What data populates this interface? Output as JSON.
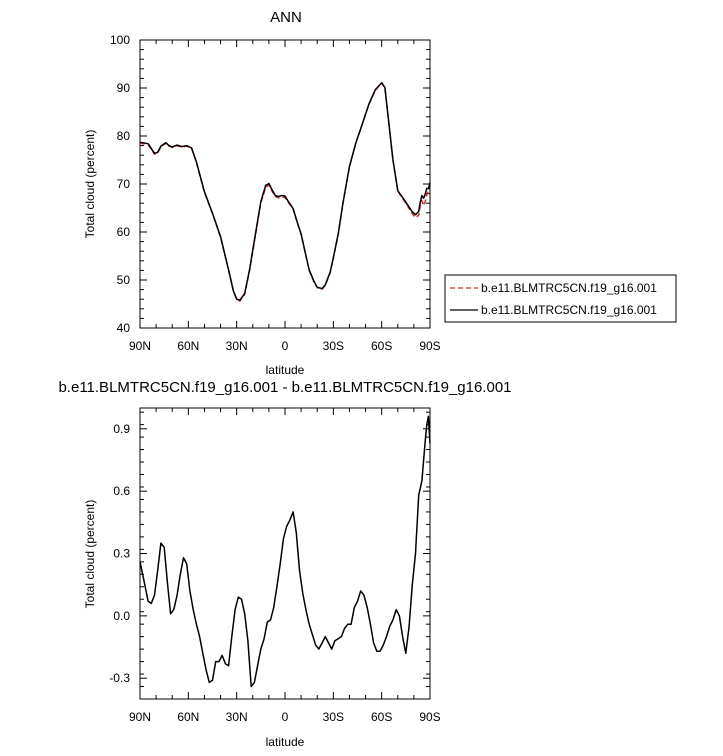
{
  "chart_data": [
    {
      "type": "line",
      "title": "ANN",
      "xlabel": "latitude",
      "ylabel": "Total cloud (percent)",
      "xlim": [
        90,
        -90
      ],
      "ylim": [
        40,
        100
      ],
      "xticks": [
        90,
        60,
        30,
        0,
        -30,
        -60,
        -90
      ],
      "xticklabels": [
        "90N",
        "60N",
        "30N",
        "0",
        "30S",
        "60S",
        "90S"
      ],
      "yticks": [
        40,
        50,
        60,
        70,
        80,
        90,
        100
      ],
      "yticklabels": [
        "40",
        "50",
        "60",
        "70",
        "80",
        "90",
        "100"
      ],
      "legend_position": "right",
      "series": [
        {
          "name": "b.e11.BLMTRC5CN.f19_g16.001",
          "color": "#d62728",
          "style": "dashed",
          "x": [
            90,
            85,
            81,
            79,
            77,
            74,
            72,
            70,
            67,
            64,
            61,
            58,
            55,
            50,
            45,
            40,
            35,
            32,
            30,
            28,
            25,
            22,
            20,
            17,
            15,
            12,
            10,
            8,
            6,
            4,
            2,
            0,
            -2,
            -5,
            -8,
            -10,
            -13,
            -15,
            -18,
            -20,
            -23,
            -25,
            -28,
            -30,
            -33,
            -36,
            -40,
            -44,
            -48,
            -52,
            -56,
            -60,
            -62,
            -64,
            -67,
            -70,
            -73,
            -76,
            -79,
            -81,
            -83,
            -84,
            -85,
            -86,
            -87,
            -88,
            -89,
            -90
          ],
          "y": [
            78.5,
            78.2,
            76.2,
            76.5,
            77.8,
            78.5,
            77.9,
            77.6,
            78.0,
            77.7,
            77.9,
            77.4,
            74.5,
            68.3,
            63.8,
            58.9,
            52.0,
            47.7,
            46.0,
            45.6,
            47.0,
            52.0,
            56.0,
            62.0,
            66.0,
            69.3,
            69.8,
            68.5,
            67.4,
            67.1,
            67.3,
            67.2,
            66.2,
            64.8,
            61.5,
            59.5,
            55.0,
            52.0,
            49.6,
            48.4,
            48.1,
            48.9,
            51.5,
            54.5,
            59.5,
            66.0,
            73.5,
            78.5,
            82.5,
            86.5,
            89.5,
            91.0,
            90.0,
            84.0,
            75.0,
            68.5,
            67.0,
            65.5,
            63.8,
            63.0,
            63.5,
            65.5,
            66.5,
            65.5,
            66.3,
            67.8,
            68.6,
            70.0
          ]
        },
        {
          "name": "b.e11.BLMTRC5CN.f19_g16.001",
          "color": "#000000",
          "style": "solid",
          "x": [
            90,
            85,
            81,
            79,
            77,
            74,
            72,
            70,
            67,
            64,
            61,
            58,
            55,
            50,
            45,
            40,
            35,
            32,
            30,
            28,
            25,
            22,
            20,
            17,
            15,
            12,
            10,
            8,
            6,
            4,
            2,
            0,
            -2,
            -5,
            -8,
            -10,
            -13,
            -15,
            -18,
            -20,
            -23,
            -25,
            -28,
            -30,
            -33,
            -36,
            -40,
            -44,
            -48,
            -52,
            -56,
            -60,
            -62,
            -64,
            -67,
            -70,
            -73,
            -76,
            -79,
            -81,
            -83,
            -84,
            -85,
            -86,
            -87,
            -88,
            -89,
            -90
          ],
          "y": [
            78.7,
            78.4,
            76.4,
            76.6,
            77.9,
            78.6,
            78.0,
            77.7,
            78.1,
            77.8,
            78.0,
            77.5,
            74.6,
            68.4,
            63.9,
            59.0,
            52.1,
            47.7,
            46.0,
            45.8,
            47.2,
            52.2,
            56.3,
            62.3,
            66.3,
            69.7,
            70.1,
            68.8,
            67.6,
            67.4,
            67.6,
            67.5,
            66.4,
            64.9,
            61.6,
            59.6,
            55.1,
            52.1,
            49.7,
            48.5,
            48.2,
            49.0,
            51.6,
            54.6,
            59.6,
            66.1,
            73.6,
            78.6,
            82.5,
            86.6,
            89.6,
            91.1,
            90.1,
            84.1,
            75.1,
            68.6,
            67.2,
            65.7,
            64.2,
            63.6,
            64.3,
            66.3,
            67.6,
            67.0,
            67.9,
            69.1,
            69.0,
            70.3
          ]
        }
      ]
    },
    {
      "type": "line",
      "title": "b.e11.BLMTRC5CN.f19_g16.001 - b.e11.BLMTRC5CN.f19_g16.001",
      "xlabel": "latitude",
      "ylabel": "Total cloud (percent)",
      "xlim": [
        90,
        -90
      ],
      "ylim": [
        -0.4,
        1.0
      ],
      "xticks": [
        90,
        60,
        30,
        0,
        -30,
        -60,
        -90
      ],
      "xticklabels": [
        "90N",
        "60N",
        "30N",
        "0",
        "30S",
        "60S",
        "90S"
      ],
      "yticks": [
        -0.3,
        0.0,
        0.3,
        0.6,
        0.9
      ],
      "yticklabels": [
        "-0.3",
        "0.0",
        "0.3",
        "0.6",
        "0.9"
      ],
      "series": [
        {
          "color": "#000000",
          "style": "solid",
          "x": [
            90,
            87,
            85,
            83,
            81,
            79,
            77,
            75,
            73,
            71,
            69,
            67,
            65,
            63,
            61,
            59,
            57,
            55,
            53,
            51,
            49,
            47,
            45,
            43,
            41,
            39,
            37,
            35,
            33,
            31,
            29,
            27,
            25,
            23,
            21,
            19,
            17,
            15,
            13,
            11,
            9,
            7,
            5,
            3,
            1,
            -1,
            -3,
            -5,
            -7,
            -9,
            -11,
            -13,
            -15,
            -17,
            -19,
            -21,
            -23,
            -25,
            -27,
            -29,
            -31,
            -33,
            -35,
            -37,
            -39,
            -41,
            -43,
            -45,
            -47,
            -49,
            -51,
            -53,
            -55,
            -57,
            -59,
            -61,
            -63,
            -65,
            -67,
            -69,
            -71,
            -73,
            -75,
            -77,
            -79,
            -81,
            -83,
            -85,
            -87,
            -88,
            -89,
            -90
          ],
          "y": [
            0.26,
            0.15,
            0.07,
            0.06,
            0.1,
            0.22,
            0.35,
            0.33,
            0.16,
            0.01,
            0.03,
            0.1,
            0.2,
            0.28,
            0.25,
            0.12,
            0.03,
            -0.04,
            -0.1,
            -0.18,
            -0.26,
            -0.32,
            -0.31,
            -0.22,
            -0.22,
            -0.19,
            -0.23,
            -0.24,
            -0.1,
            0.03,
            0.09,
            0.08,
            0.01,
            -0.12,
            -0.34,
            -0.32,
            -0.24,
            -0.16,
            -0.11,
            -0.03,
            -0.02,
            0.04,
            0.14,
            0.25,
            0.37,
            0.43,
            0.46,
            0.5,
            0.4,
            0.22,
            0.11,
            0.03,
            -0.04,
            -0.09,
            -0.14,
            -0.16,
            -0.13,
            -0.1,
            -0.13,
            -0.16,
            -0.12,
            -0.11,
            -0.1,
            -0.06,
            -0.04,
            -0.04,
            0.04,
            0.07,
            0.12,
            0.1,
            0.04,
            -0.04,
            -0.13,
            -0.17,
            -0.17,
            -0.14,
            -0.1,
            -0.05,
            -0.02,
            0.03,
            0.0,
            -0.1,
            -0.18,
            -0.05,
            0.15,
            0.3,
            0.58,
            0.65,
            0.84,
            0.92,
            0.96,
            0.83
          ]
        }
      ]
    }
  ]
}
